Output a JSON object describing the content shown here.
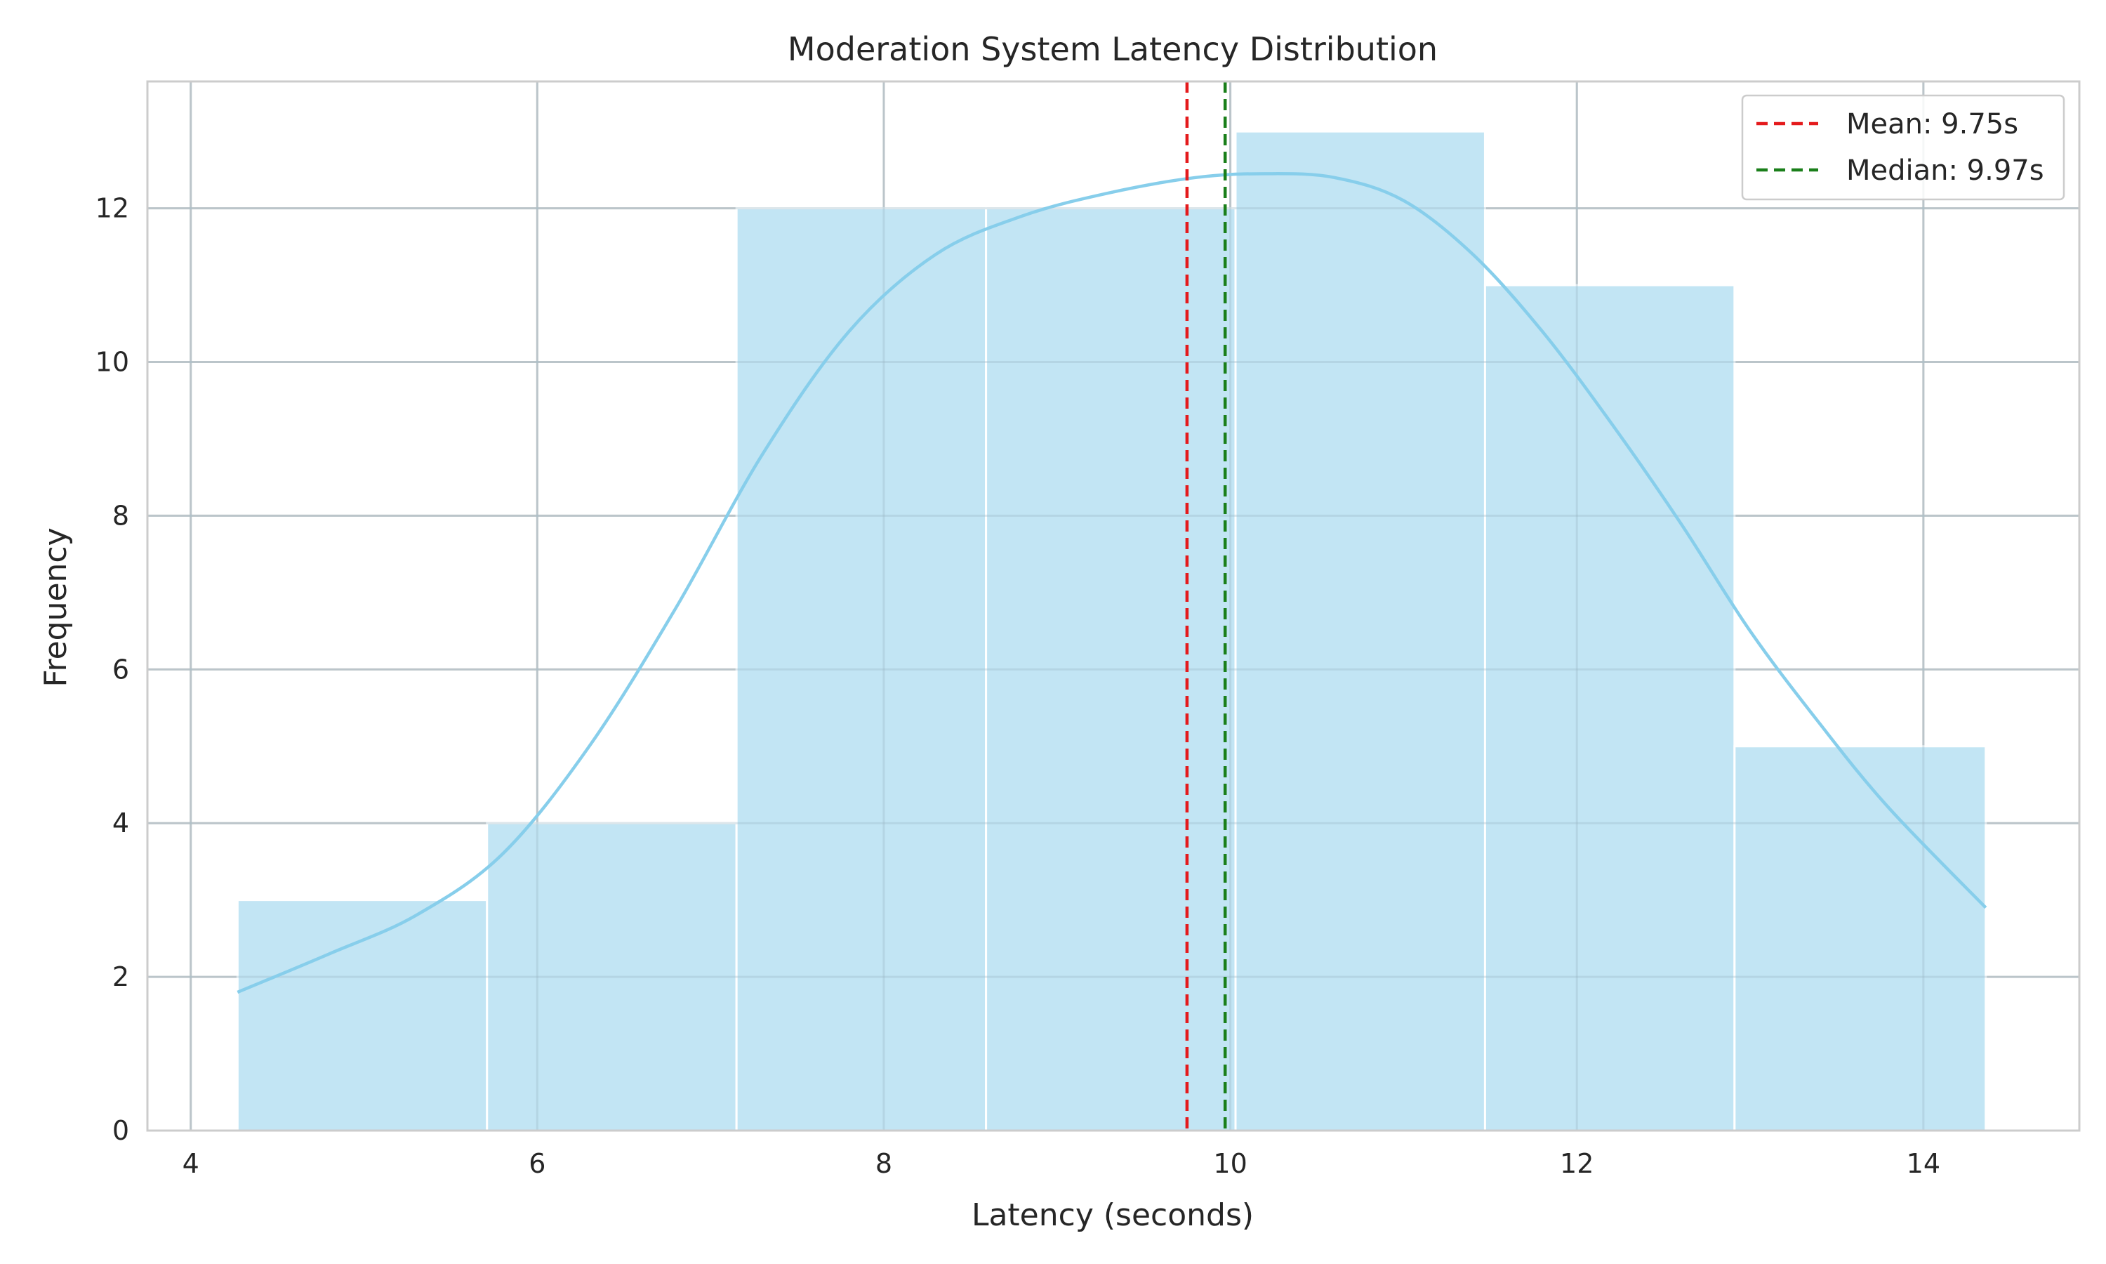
{
  "chart_data": {
    "type": "bar",
    "title": "Moderation System Latency Distribution",
    "xlabel": "Latency (seconds)",
    "ylabel": "Frequency",
    "xlim": [
      3.75,
      14.9
    ],
    "ylim": [
      0,
      13.65
    ],
    "x_ticks": [
      4,
      6,
      8,
      10,
      12,
      14
    ],
    "y_ticks": [
      0,
      2,
      4,
      6,
      8,
      10,
      12
    ],
    "grid": true,
    "legend_position": "top-right",
    "bins": [
      {
        "x0": 4.27,
        "x1": 5.71,
        "count": 3
      },
      {
        "x0": 5.71,
        "x1": 7.15,
        "count": 4
      },
      {
        "x0": 7.15,
        "x1": 8.59,
        "count": 12
      },
      {
        "x0": 8.59,
        "x1": 10.03,
        "count": 12
      },
      {
        "x0": 10.03,
        "x1": 11.47,
        "count": 13
      },
      {
        "x0": 11.47,
        "x1": 12.91,
        "count": 11
      },
      {
        "x0": 12.91,
        "x1": 14.36,
        "count": 5
      }
    ],
    "kde": {
      "x": [
        4.27,
        4.8,
        5.3,
        5.8,
        6.3,
        6.8,
        7.3,
        7.8,
        8.3,
        8.8,
        9.3,
        9.8,
        10.2,
        10.6,
        11.0,
        11.4,
        11.8,
        12.2,
        12.6,
        13.0,
        13.4,
        13.8,
        14.36
      ],
      "y": [
        1.8,
        2.3,
        2.8,
        3.6,
        5.0,
        6.8,
        8.8,
        10.4,
        11.4,
        11.9,
        12.2,
        12.4,
        12.45,
        12.4,
        12.1,
        11.4,
        10.4,
        9.2,
        7.9,
        6.5,
        5.3,
        4.2,
        2.9
      ]
    },
    "reference_lines": [
      {
        "name": "Mean: 9.75s",
        "x": 9.75,
        "color": "#e41a1c"
      },
      {
        "name": "Median: 9.97s",
        "x": 9.97,
        "color": "#1a7f1a"
      }
    ],
    "colors": {
      "bar_fill": "#c2e5f4",
      "bar_edge": "#ffffff",
      "kde_line": "#87ceeb",
      "grid": "#cccccc",
      "axes_edge": "#cccccc"
    }
  }
}
